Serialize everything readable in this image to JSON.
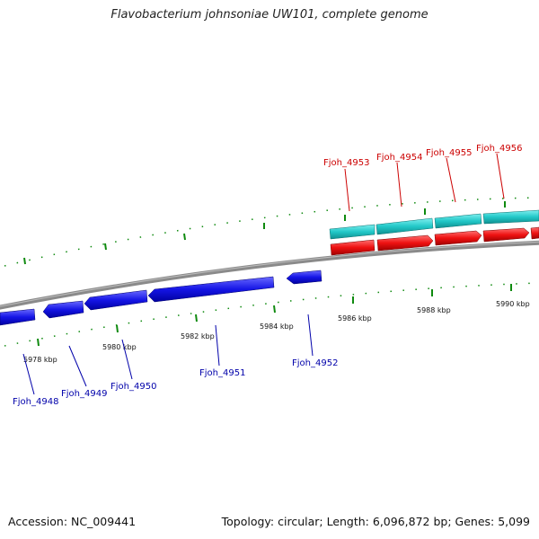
{
  "title": "Flavobacterium johnsoniae UW101, complete genome",
  "footer": {
    "accession": "Accession: NC_009441",
    "summary": "Topology: circular; Length: 6,096,872 bp; Genes: 5,099"
  },
  "colors": {
    "forward_strand_upper": "#2ccbcb",
    "forward_strand_lower": "#ee1111",
    "reverse_strand": "#1515e6",
    "backbone": "#8a8a8a",
    "ticks": "#0f8a0f",
    "forward_label": "#cc0000",
    "reverse_label": "#0000aa"
  },
  "forward_genes": [
    {
      "name": "Fjoh_4953"
    },
    {
      "name": "Fjoh_4954"
    },
    {
      "name": "Fjoh_4955"
    },
    {
      "name": "Fjoh_4956"
    }
  ],
  "reverse_genes": [
    {
      "name": "Fjoh_4948"
    },
    {
      "name": "Fjoh_4949"
    },
    {
      "name": "Fjoh_4950"
    },
    {
      "name": "Fjoh_4951"
    },
    {
      "name": "Fjoh_4952"
    }
  ],
  "position_ticks": [
    {
      "label": "5978 kbp"
    },
    {
      "label": "5980 kbp"
    },
    {
      "label": "5982 kbp"
    },
    {
      "label": "5984 kbp"
    },
    {
      "label": "5986 kbp"
    },
    {
      "label": "5988 kbp"
    },
    {
      "label": "5990 kbp"
    }
  ]
}
